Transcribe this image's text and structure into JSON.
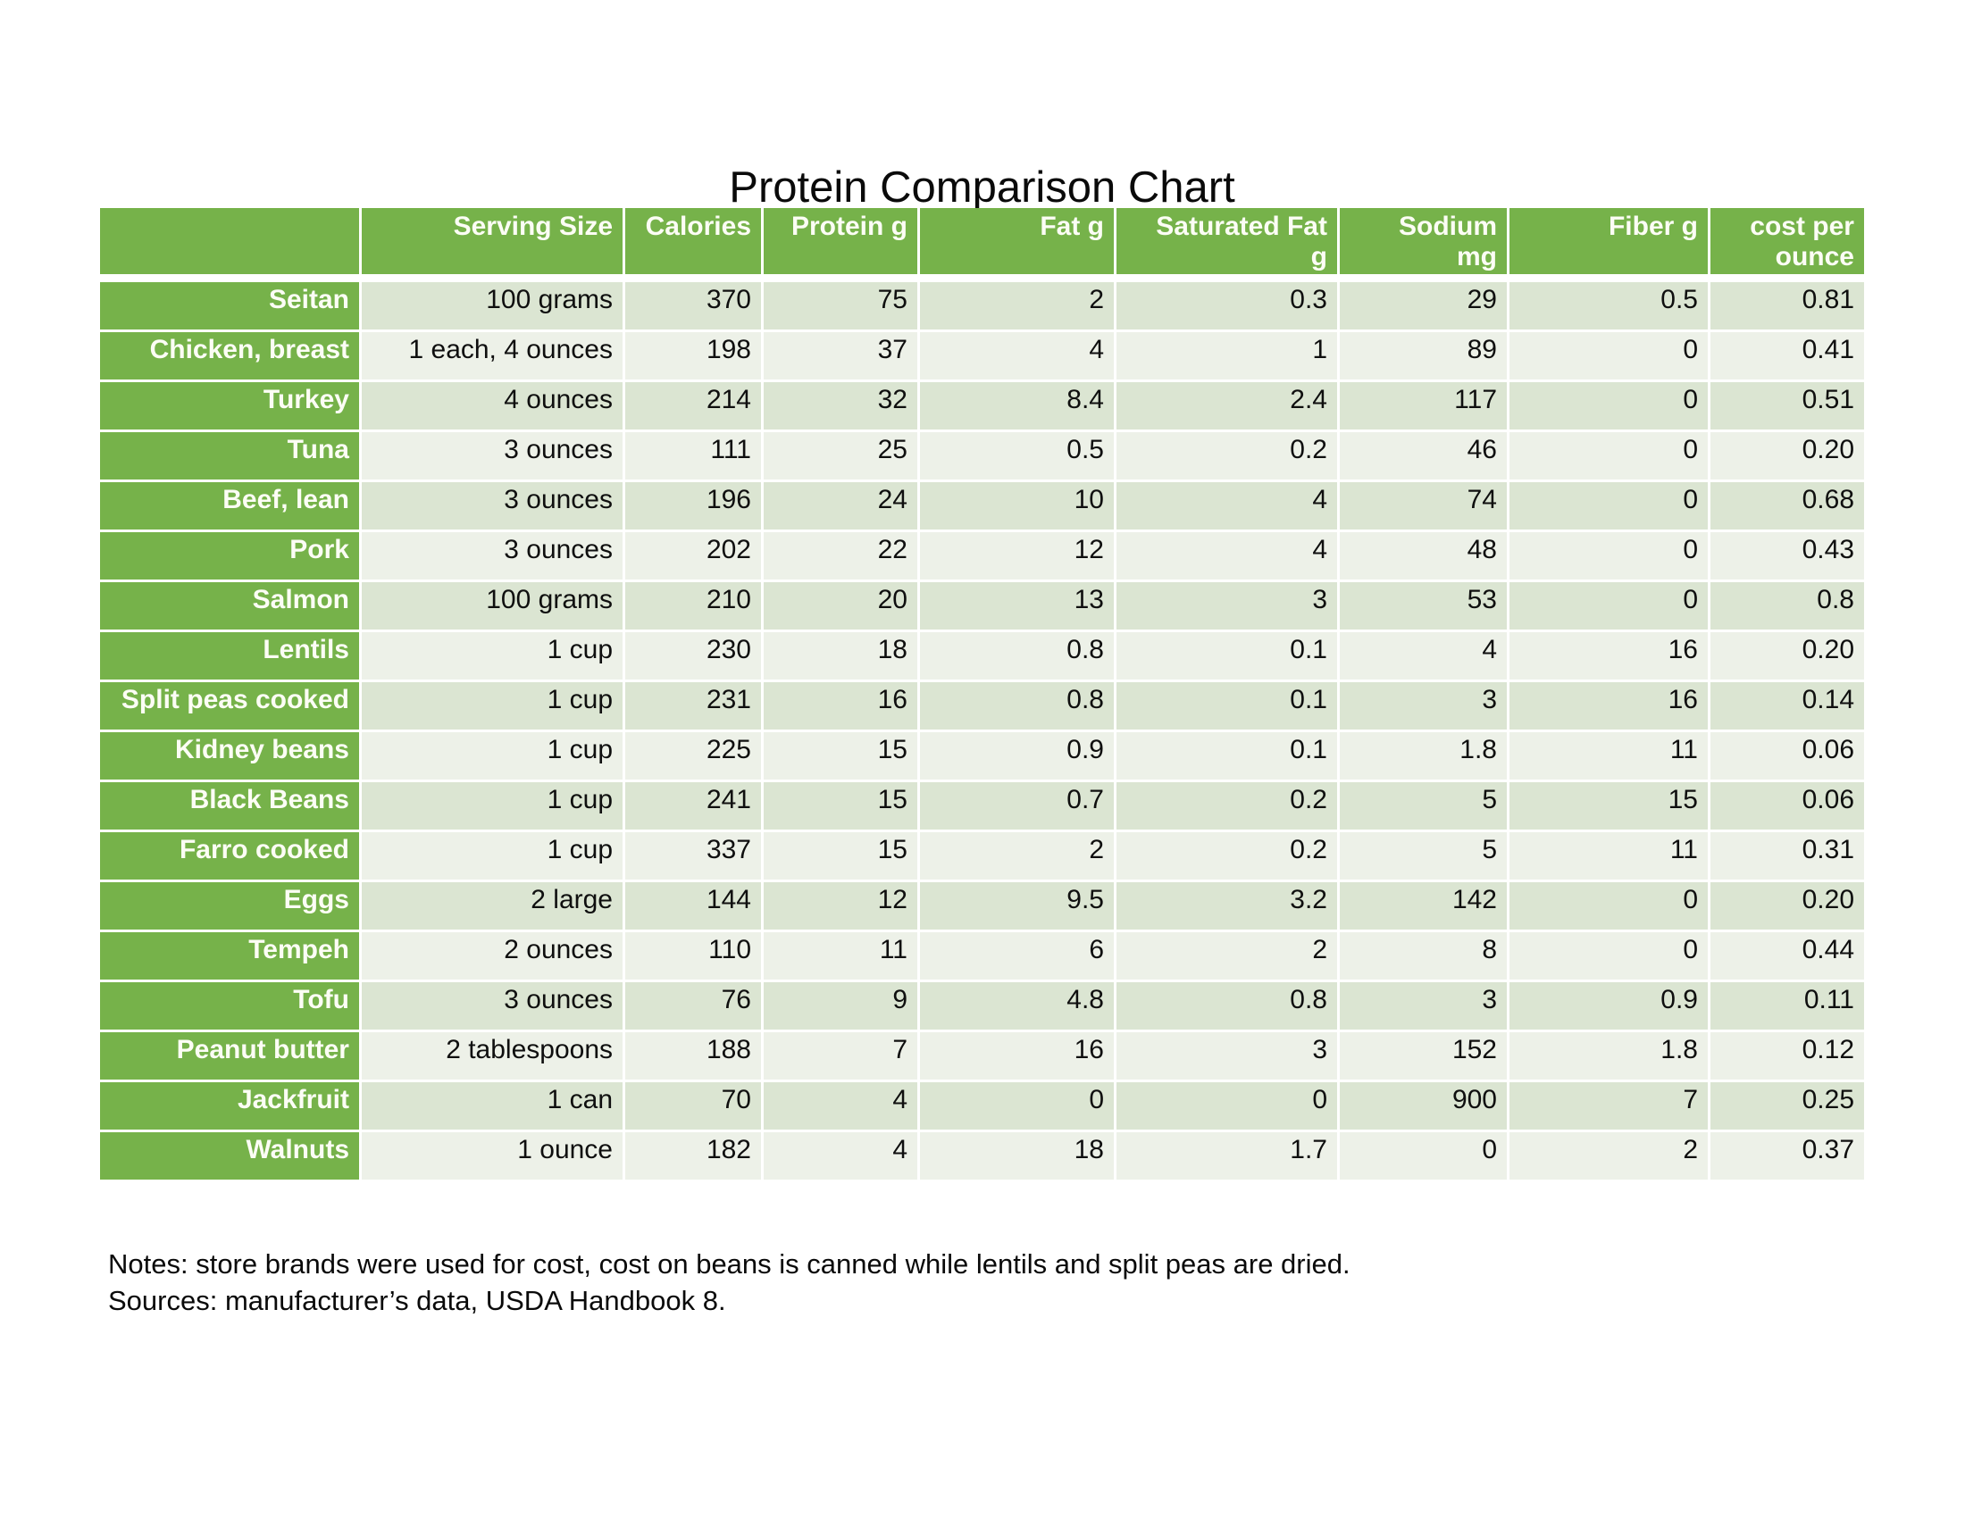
{
  "title": "Protein Comparison Chart",
  "notes": {
    "line1": "Notes: store brands were used for cost, cost on beans is canned while lentils and split peas are dried.",
    "line2": "Sources: manufacturer’s data, USDA Handbook 8."
  },
  "colors": {
    "header_green": "#76b24a",
    "text_on_green": "#fcfdf5",
    "row_stripe_dark": "#dbe5d2",
    "row_stripe_light": "#edf1e8",
    "gap_white": "#ffffff"
  },
  "chart_data": {
    "type": "table",
    "title": "Protein Comparison Chart",
    "columns": [
      "",
      "Serving Size",
      "Calories",
      "Protein g",
      "Fat g",
      "Saturated Fat\ng",
      "Sodium\nmg",
      "Fiber g",
      "cost per\nounce"
    ],
    "rows": [
      [
        "Seitan",
        "100 grams",
        "370",
        "75",
        "2",
        "0.3",
        "29",
        "0.5",
        "0.81"
      ],
      [
        "Chicken, breast",
        "1 each, 4 ounces",
        "198",
        "37",
        "4",
        "1",
        "89",
        "0",
        "0.41"
      ],
      [
        "Turkey",
        "4 ounces",
        "214",
        "32",
        "8.4",
        "2.4",
        "117",
        "0",
        "0.51"
      ],
      [
        "Tuna",
        "3 ounces",
        "111",
        "25",
        "0.5",
        "0.2",
        "46",
        "0",
        "0.20"
      ],
      [
        "Beef, lean",
        "3 ounces",
        "196",
        "24",
        "10",
        "4",
        "74",
        "0",
        "0.68"
      ],
      [
        "Pork",
        "3 ounces",
        "202",
        "22",
        "12",
        "4",
        "48",
        "0",
        "0.43"
      ],
      [
        "Salmon",
        "100 grams",
        "210",
        "20",
        "13",
        "3",
        "53",
        "0",
        "0.8"
      ],
      [
        "Lentils",
        "1 cup",
        "230",
        "18",
        "0.8",
        "0.1",
        "4",
        "16",
        "0.20"
      ],
      [
        "Split peas cooked",
        "1 cup",
        "231",
        "16",
        "0.8",
        "0.1",
        "3",
        "16",
        "0.14"
      ],
      [
        "Kidney beans",
        "1 cup",
        "225",
        "15",
        "0.9",
        "0.1",
        "1.8",
        "11",
        "0.06"
      ],
      [
        "Black Beans",
        "1 cup",
        "241",
        "15",
        "0.7",
        "0.2",
        "5",
        "15",
        "0.06"
      ],
      [
        "Farro cooked",
        "1 cup",
        "337",
        "15",
        "2",
        "0.2",
        "5",
        "11",
        "0.31"
      ],
      [
        "Eggs",
        "2 large",
        "144",
        "12",
        "9.5",
        "3.2",
        "142",
        "0",
        "0.20"
      ],
      [
        "Tempeh",
        "2 ounces",
        "110",
        "11",
        "6",
        "2",
        "8",
        "0",
        "0.44"
      ],
      [
        "Tofu",
        "3 ounces",
        "76",
        "9",
        "4.8",
        "0.8",
        "3",
        "0.9",
        "0.11"
      ],
      [
        "Peanut butter",
        "2 tablespoons",
        "188",
        "7",
        "16",
        "3",
        "152",
        "1.8",
        "0.12"
      ],
      [
        "Jackfruit",
        "1 can",
        "70",
        "4",
        "0",
        "0",
        "900",
        "7",
        "0.25"
      ],
      [
        "Walnuts",
        "1 ounce",
        "182",
        "4",
        "18",
        "1.7",
        "0",
        "2",
        "0.37"
      ]
    ]
  }
}
